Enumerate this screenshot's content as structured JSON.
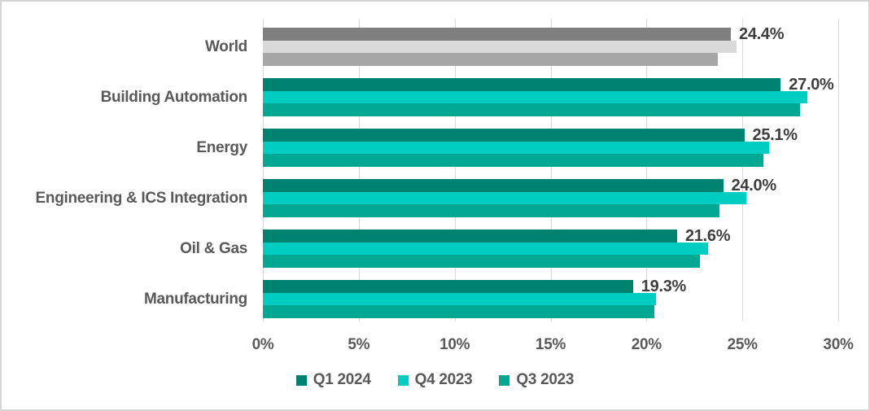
{
  "chart_data": {
    "type": "bar",
    "orientation": "horizontal",
    "title": "",
    "xlabel": "",
    "ylabel": "",
    "grid": true,
    "legend_position": "bottom",
    "xlim": [
      0,
      30
    ],
    "x_ticks": [
      "0%",
      "5%",
      "10%",
      "15%",
      "20%",
      "25%",
      "30%"
    ],
    "categories": [
      "World",
      "Building Automation",
      "Energy",
      "Engineering & ICS Integration",
      "Oil & Gas",
      "Manufacturing"
    ],
    "series": [
      {
        "name": "Q1 2024",
        "color": "#008270",
        "color_world": "#7f7f7f",
        "values": [
          24.4,
          27.0,
          25.1,
          24.0,
          21.6,
          19.3
        ]
      },
      {
        "name": "Q4 2023",
        "color": "#00cdc2",
        "color_world": "#d9d9d9",
        "values": [
          24.7,
          28.4,
          26.4,
          25.2,
          23.2,
          20.5
        ]
      },
      {
        "name": "Q3 2023",
        "color": "#00a891",
        "color_world": "#a6a6a6",
        "values": [
          23.7,
          28.0,
          26.1,
          23.8,
          22.8,
          20.4
        ]
      }
    ],
    "data_labels": [
      "24.4%",
      "27.0%",
      "25.1%",
      "24.0%",
      "21.6%",
      "19.3%"
    ]
  },
  "styles": {
    "frame_border": "#d5d5d5",
    "gridline": "#d9d9d9",
    "category_text": "#595959",
    "axis_text": "#595959",
    "data_label_text": "#3f3f3f",
    "background": "#ffffff"
  }
}
